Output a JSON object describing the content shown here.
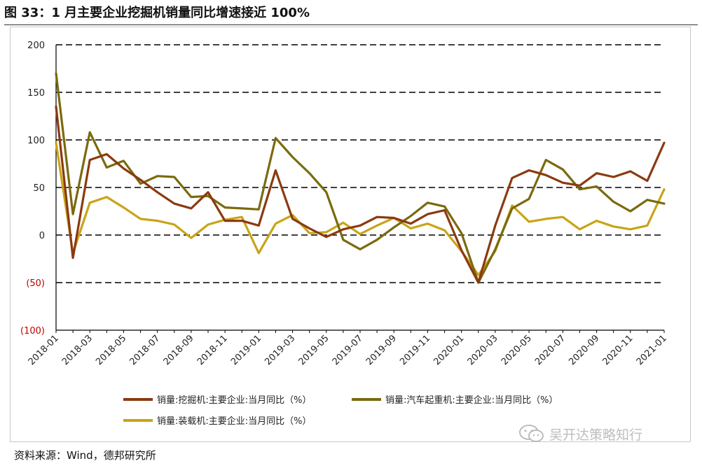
{
  "title": "图 33：1 月主要企业挖掘机销量同比增速接近 100%",
  "source": "资料来源：Wind，德邦研究所",
  "watermark": "吴开达策略知行",
  "chart_data": {
    "type": "line",
    "title": "图 33：1 月主要企业挖掘机销量同比增速接近 100%",
    "xlabel": "",
    "ylabel": "",
    "ylim": [
      -100,
      200
    ],
    "yticks": [
      200,
      150,
      100,
      50,
      0,
      -50,
      -100
    ],
    "ytick_labels": [
      "200",
      "150",
      "100",
      "50",
      "0",
      "(50)",
      "(100)"
    ],
    "grid": "horizontal dashed",
    "legend_position": "bottom",
    "categories": [
      "2018-01",
      "2018-02",
      "2018-03",
      "2018-04",
      "2018-05",
      "2018-06",
      "2018-07",
      "2018-08",
      "2018-09",
      "2018-10",
      "2018-11",
      "2018-12",
      "2019-01",
      "2019-02",
      "2019-03",
      "2019-04",
      "2019-05",
      "2019-06",
      "2019-07",
      "2019-08",
      "2019-09",
      "2019-10",
      "2019-11",
      "2019-12",
      "2020-01",
      "2020-02",
      "2020-03",
      "2020-04",
      "2020-05",
      "2020-06",
      "2020-07",
      "2020-08",
      "2020-09",
      "2020-10",
      "2020-11",
      "2020-12",
      "2021-01"
    ],
    "tick_labels": [
      "2018-01",
      "2018-03",
      "2018-05",
      "2018-07",
      "2018-09",
      "2018-11",
      "2019-01",
      "2019-03",
      "2019-05",
      "2019-07",
      "2019-09",
      "2019-11",
      "2020-01",
      "2020-03",
      "2020-05",
      "2020-07",
      "2020-09",
      "2020-11",
      "2021-01"
    ],
    "series": [
      {
        "name": "销量:挖掘机:主要企业:当月同比（%）",
        "color": "#8B3A10",
        "values": [
          135,
          -24,
          79,
          85,
          70,
          58,
          45,
          33,
          28,
          45,
          15,
          15,
          10,
          68,
          17,
          7,
          -2,
          6,
          10,
          19,
          18,
          12,
          22,
          26,
          -16,
          -50,
          10,
          60,
          68,
          63,
          55,
          52,
          65,
          61,
          67,
          57,
          97
        ]
      },
      {
        "name": "销量:汽车起重机:主要企业:当月同比（%）",
        "color": "#7A6A0E",
        "values": [
          170,
          22,
          108,
          71,
          78,
          54,
          62,
          61,
          40,
          41,
          29,
          28,
          27,
          102,
          82,
          65,
          45,
          -5,
          -15,
          -5,
          8,
          20,
          34,
          30,
          2,
          -50,
          -15,
          28,
          38,
          79,
          69,
          48,
          51,
          35,
          25,
          37,
          33
        ]
      },
      {
        "name": "销量:装载机:主要企业:当月同比（%）",
        "color": "#C9A418",
        "values": [
          97,
          -19,
          34,
          40,
          29,
          17,
          15,
          11,
          -3,
          11,
          16,
          19,
          -19,
          12,
          21,
          2,
          3,
          13,
          1,
          10,
          18,
          7,
          12,
          5,
          -17,
          -42,
          -17,
          31,
          14,
          17,
          19,
          6,
          15,
          9,
          6,
          10,
          48
        ]
      }
    ]
  }
}
